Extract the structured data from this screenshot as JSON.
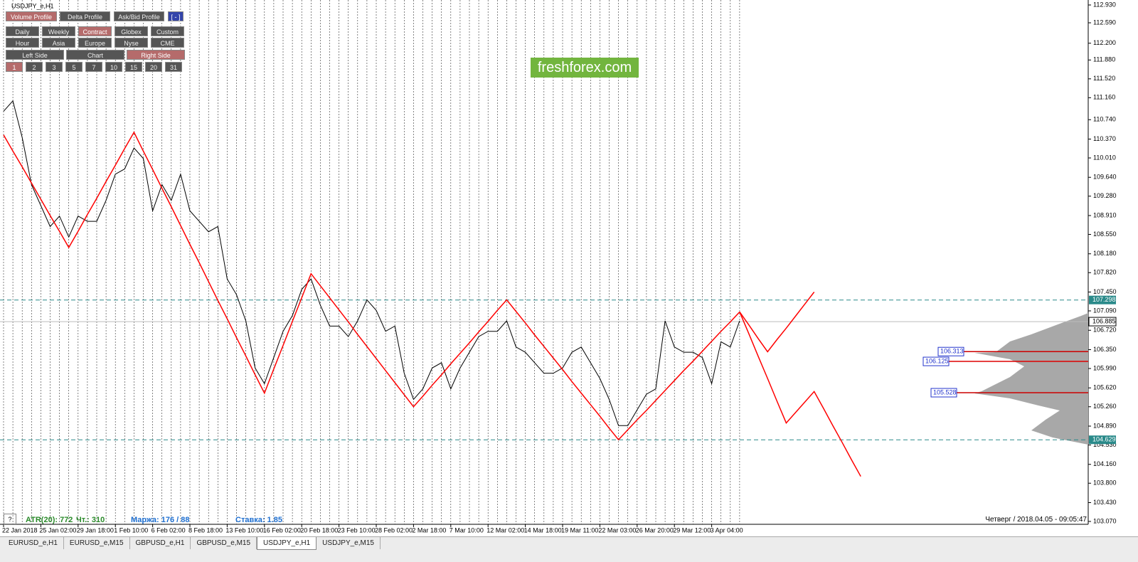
{
  "window_title": "USDJPY_e,H1",
  "panel": {
    "rows": [
      [
        {
          "label": "Volume Profile",
          "active": true
        },
        {
          "label": "Delta Profile",
          "active": false
        },
        {
          "label": "Ask/Bid Profile",
          "active": false
        },
        {
          "label": "[ - ]",
          "active": false
        }
      ],
      [
        {
          "label": "Daily",
          "active": false
        },
        {
          "label": "Weekly",
          "active": false
        },
        {
          "label": "Contract",
          "active": true
        },
        {
          "label": "Globex",
          "active": false
        },
        {
          "label": "Custom",
          "active": false
        }
      ],
      [
        {
          "label": "Hour",
          "active": false
        },
        {
          "label": "Asia",
          "active": false
        },
        {
          "label": "Europe",
          "active": false
        },
        {
          "label": "Nyse",
          "active": false
        },
        {
          "label": "CME",
          "active": false
        }
      ],
      [
        {
          "label": "Left Side",
          "active": false
        },
        {
          "label": "Chart",
          "active": false
        },
        {
          "label": "Right Side",
          "active": true
        }
      ],
      [
        {
          "label": "1",
          "active": true
        },
        {
          "label": "2",
          "active": false
        },
        {
          "label": "3",
          "active": false
        },
        {
          "label": "5",
          "active": false
        },
        {
          "label": "7",
          "active": false
        },
        {
          "label": "10",
          "active": false
        },
        {
          "label": "15",
          "active": false
        },
        {
          "label": "20",
          "active": false
        },
        {
          "label": "31",
          "active": false
        }
      ]
    ]
  },
  "watermark": "freshforex.com",
  "status": {
    "help": "?",
    "atr": "ATR(20): 772",
    "trades": "Чт.: 310",
    "margin": "Маржа: 176 / 88",
    "rate": "Ставка: 1.85"
  },
  "datetime": "Четверг / 2018.04.05 - 09:05:47",
  "tabs": [
    "EURUSD_e,H1",
    "EURUSD_e,M15",
    "GBPUSD_e,H1",
    "GBPUSD_e,M15",
    "USDJPY_e,H1",
    "USDJPY_e,M15"
  ],
  "active_tab": 4,
  "chart_data": {
    "type": "line",
    "categories": [
      "22 Jan 2018",
      null,
      null,
      null,
      "25 Jan 02:00",
      null,
      null,
      null,
      "29 Jan 18:00",
      null,
      null,
      null,
      "1 Feb 10:00",
      null,
      null,
      null,
      "6 Feb 02:00",
      null,
      null,
      null,
      "8 Feb 18:00",
      null,
      null,
      null,
      "13 Feb 10:00",
      null,
      null,
      null,
      "16 Feb 02:00",
      null,
      null,
      null,
      "20 Feb 18:00",
      null,
      null,
      null,
      "23 Feb 10:00",
      null,
      null,
      null,
      "28 Feb 02:00",
      null,
      null,
      null,
      "2 Mar 18:00",
      null,
      null,
      null,
      "7 Mar 10:00",
      null,
      null,
      null,
      "12 Mar 02:00",
      null,
      null,
      null,
      "14 Mar 18:00",
      null,
      null,
      null,
      "19 Mar 11:00",
      null,
      null,
      null,
      "22 Mar 03:00",
      null,
      null,
      null,
      "26 Mar 20:00",
      null,
      null,
      null,
      "29 Mar 12:00",
      null,
      null,
      null,
      "3 Apr 04:00",
      null,
      null,
      null,
      null,
      null,
      null,
      null,
      null,
      null,
      null,
      null,
      null,
      null,
      null,
      null,
      null
    ],
    "series": [
      {
        "color": "#000000",
        "values": [
          110.9,
          111.1,
          110.4,
          109.5,
          109.1,
          108.7,
          108.9,
          108.5,
          108.9,
          108.8,
          108.8,
          109.2,
          109.7,
          109.8,
          110.2,
          110.0,
          109.0,
          109.5,
          109.2,
          109.7,
          109.0,
          108.8,
          108.6,
          108.7,
          107.7,
          107.4,
          106.9,
          106.0,
          105.7,
          106.2,
          106.7,
          107.0,
          107.5,
          107.7,
          107.2,
          106.8,
          106.8,
          106.6,
          106.9,
          107.3,
          107.1,
          106.7,
          106.8,
          105.9,
          105.4,
          105.6,
          106.0,
          106.1,
          105.6,
          106.0,
          106.3,
          106.6,
          106.7,
          106.7,
          106.9,
          106.4,
          106.3,
          106.1,
          105.9,
          105.9,
          106.0,
          106.3,
          106.4,
          106.1,
          105.8,
          105.4,
          104.9,
          104.9,
          105.2,
          105.5,
          105.6,
          106.9,
          106.4,
          106.3,
          106.3,
          106.2,
          105.7,
          106.5,
          106.4,
          106.9,
          null,
          null,
          null,
          null,
          null,
          null,
          null,
          null,
          null,
          null,
          null,
          null,
          null
        ]
      },
      {
        "color": "#ff0000",
        "values": [
          110.45,
          110.14,
          109.84,
          109.53,
          109.22,
          108.91,
          108.61,
          108.3,
          108.61,
          108.93,
          109.24,
          109.56,
          109.87,
          110.19,
          110.5,
          110.14,
          109.79,
          109.43,
          109.08,
          108.72,
          108.36,
          108.01,
          107.65,
          107.29,
          106.94,
          106.58,
          106.23,
          105.87,
          105.52,
          105.98,
          106.43,
          106.89,
          107.34,
          107.8,
          107.57,
          107.34,
          107.11,
          106.88,
          106.64,
          106.41,
          106.18,
          105.95,
          105.72,
          105.49,
          105.26,
          105.46,
          105.67,
          105.87,
          106.08,
          106.28,
          106.48,
          106.69,
          106.89,
          107.1,
          107.3,
          107.08,
          106.86,
          106.63,
          106.41,
          106.19,
          105.97,
          105.74,
          105.52,
          105.3,
          105.08,
          104.85,
          104.63,
          104.82,
          105.01,
          105.19,
          105.38,
          105.57,
          105.76,
          105.95,
          106.13,
          106.32,
          106.51,
          106.7,
          106.88,
          107.07,
          null,
          null,
          null,
          null,
          null,
          null,
          null,
          null,
          null,
          null,
          null,
          null,
          null
        ]
      },
      {
        "color": "#ff0000",
        "values": [
          null,
          null,
          null,
          null,
          null,
          null,
          null,
          null,
          null,
          null,
          null,
          null,
          null,
          null,
          null,
          null,
          null,
          null,
          null,
          null,
          null,
          null,
          null,
          null,
          null,
          null,
          null,
          null,
          null,
          null,
          null,
          null,
          null,
          null,
          null,
          null,
          null,
          null,
          null,
          null,
          null,
          null,
          null,
          null,
          null,
          null,
          null,
          null,
          null,
          null,
          null,
          null,
          null,
          null,
          null,
          null,
          null,
          null,
          null,
          null,
          null,
          null,
          null,
          null,
          null,
          null,
          null,
          null,
          null,
          null,
          null,
          null,
          null,
          null,
          null,
          null,
          null,
          null,
          null,
          107.07,
          106.82,
          106.56,
          106.31,
          106.54,
          106.76,
          106.99,
          107.22,
          107.45,
          null,
          null,
          null,
          null,
          null
        ]
      },
      {
        "color": "#ff0000",
        "values": [
          null,
          null,
          null,
          null,
          null,
          null,
          null,
          null,
          null,
          null,
          null,
          null,
          null,
          null,
          null,
          null,
          null,
          null,
          null,
          null,
          null,
          null,
          null,
          null,
          null,
          null,
          null,
          null,
          null,
          null,
          null,
          null,
          null,
          null,
          null,
          null,
          null,
          null,
          null,
          null,
          null,
          null,
          null,
          null,
          null,
          null,
          null,
          null,
          null,
          null,
          null,
          null,
          null,
          null,
          null,
          null,
          null,
          null,
          null,
          null,
          null,
          null,
          null,
          null,
          null,
          null,
          null,
          null,
          null,
          null,
          null,
          null,
          null,
          null,
          null,
          null,
          null,
          null,
          null,
          107.07,
          106.65,
          106.22,
          105.8,
          105.37,
          104.95,
          105.15,
          105.35,
          105.55,
          105.23,
          104.9,
          104.58,
          104.25,
          103.93
        ]
      }
    ],
    "ylim": [
      103.07,
      112.93
    ],
    "yticks": [
      {
        "value": 112.93,
        "label": "112.930"
      },
      {
        "value": 112.59,
        "label": "112.590"
      },
      {
        "value": 112.2,
        "label": "112.200"
      },
      {
        "value": 111.88,
        "label": "111.880"
      },
      {
        "value": 111.52,
        "label": "111.520"
      },
      {
        "value": 111.16,
        "label": "111.160"
      },
      {
        "value": 110.74,
        "label": "110.740"
      },
      {
        "value": 110.37,
        "label": "110.370"
      },
      {
        "value": 110.01,
        "label": "110.010"
      },
      {
        "value": 109.64,
        "label": "109.640"
      },
      {
        "value": 109.28,
        "label": "109.280"
      },
      {
        "value": 108.91,
        "label": "108.910"
      },
      {
        "value": 108.55,
        "label": "108.550"
      },
      {
        "value": 108.18,
        "label": "108.180"
      },
      {
        "value": 107.82,
        "label": "107.820"
      },
      {
        "value": 107.45,
        "label": "107.450"
      },
      {
        "value": 107.09,
        "label": "107.090"
      },
      {
        "value": 106.72,
        "label": "106.720"
      },
      {
        "value": 106.35,
        "label": "106.350"
      },
      {
        "value": 105.99,
        "label": "105.990"
      },
      {
        "value": 105.62,
        "label": "105.620"
      },
      {
        "value": 105.26,
        "label": "105.260"
      },
      {
        "value": 104.89,
        "label": "104.890"
      },
      {
        "value": 104.53,
        "label": "104.530"
      },
      {
        "value": 104.16,
        "label": "104.160"
      },
      {
        "value": 103.8,
        "label": "103.800"
      },
      {
        "value": 103.43,
        "label": "103.430"
      },
      {
        "value": 103.07,
        "label": "103.070"
      }
    ],
    "levels": [
      {
        "value": 107.298,
        "color": "#2a8a8a"
      },
      {
        "value": 104.629,
        "color": "#2a8a8a"
      }
    ],
    "current_price": 106.885,
    "profile_levels": [
      106.313,
      106.125,
      105.528
    ]
  }
}
